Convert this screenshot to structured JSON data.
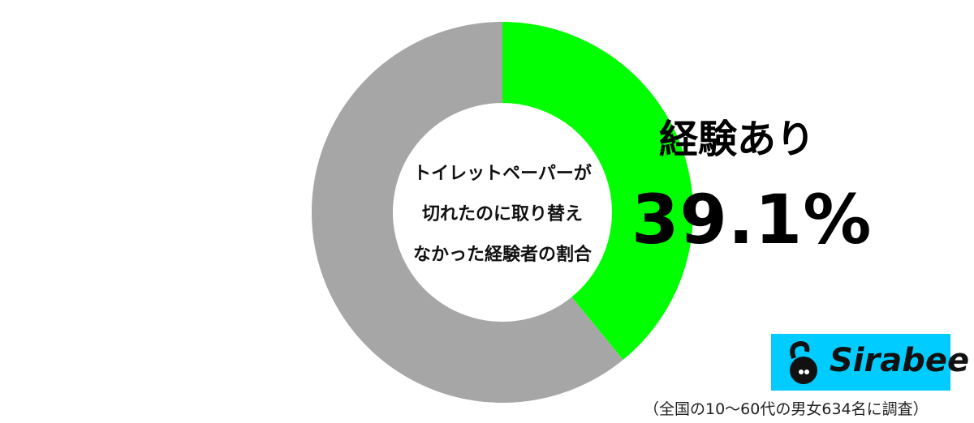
{
  "chart_data": {
    "type": "pie",
    "donut": true,
    "title": "トイレットペーパーが切れたのに取り替えなかった経験者の割合",
    "title_lines": [
      "トイレットペーパーが",
      "切れたのに取り替え",
      "なかった経験者の割合"
    ],
    "slices": [
      {
        "label": "経験あり",
        "value": 39.1,
        "value_label": "39.1%",
        "color": "#00FF00"
      },
      {
        "value": 60.9,
        "color": "#A6A6A6"
      }
    ]
  },
  "logo": {
    "text": "Sirabee",
    "color": "#00CCFF"
  },
  "footnote": "（全国の10〜60代の男女634名に調査）"
}
